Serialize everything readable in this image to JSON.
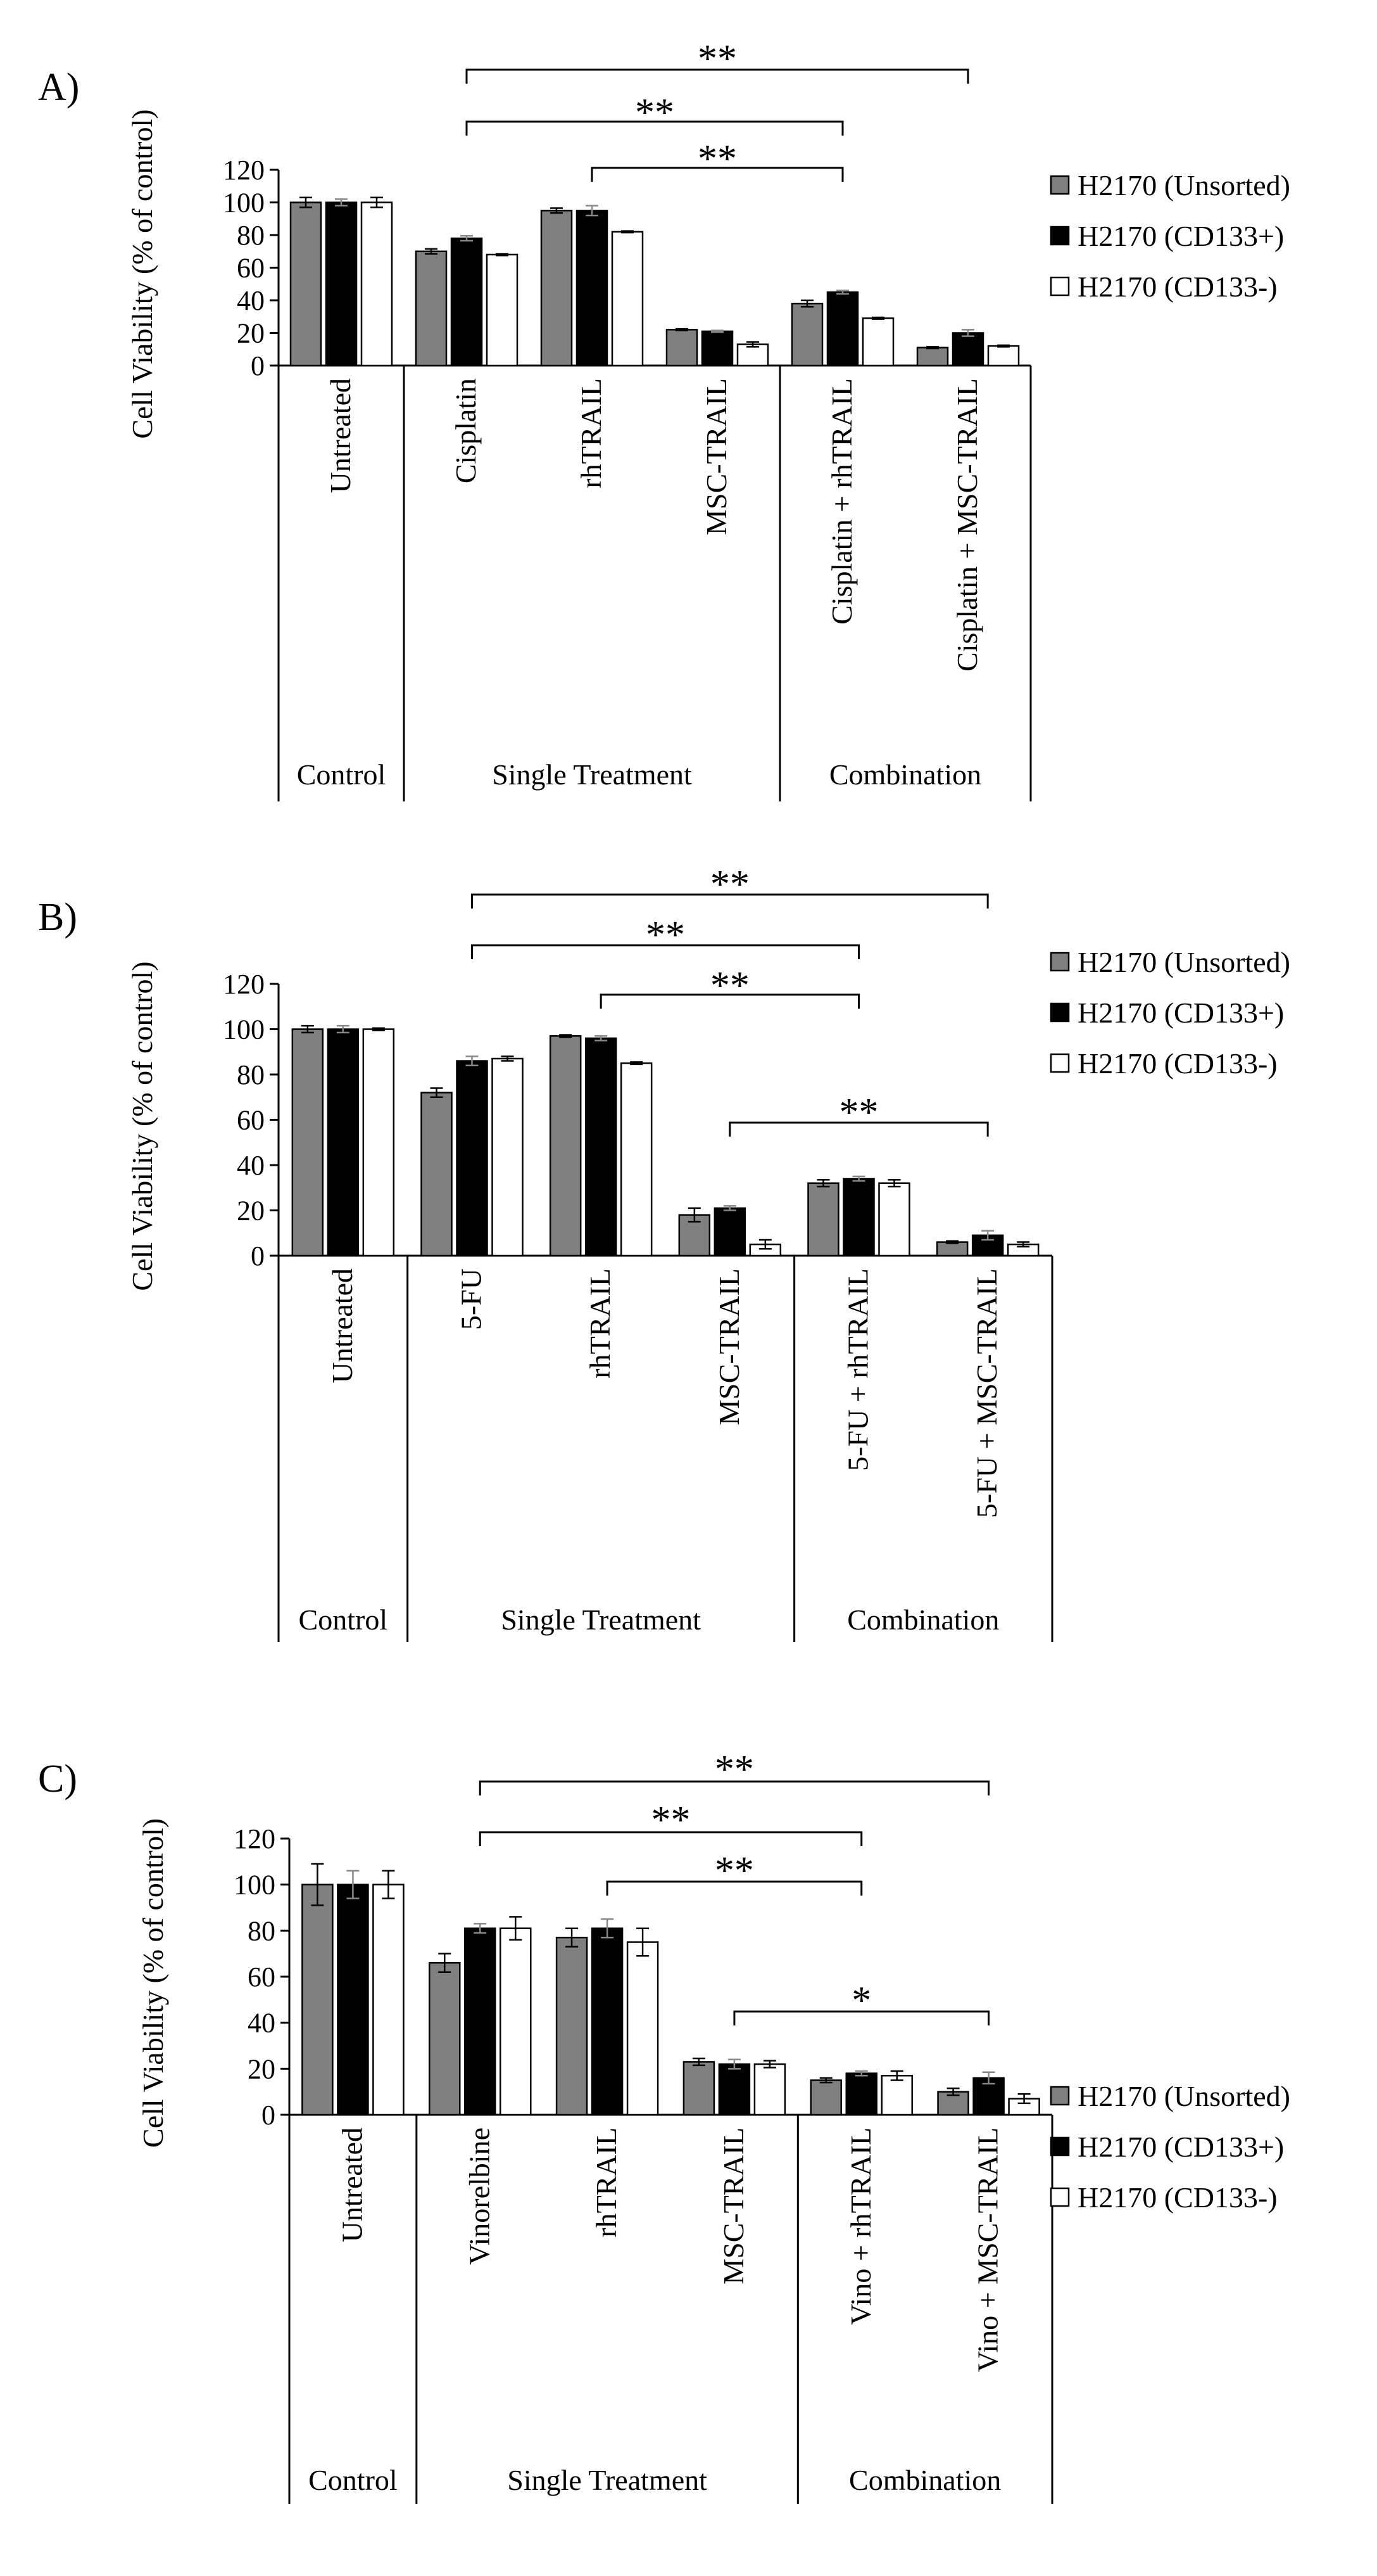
{
  "chart_data": [
    {
      "type": "bar",
      "panel_label": "A)",
      "ylabel": "Cell Viability (% of control)",
      "ylim": [
        0,
        120
      ],
      "yticks": [
        "0",
        "20",
        "40",
        "60",
        "80",
        "100",
        "120"
      ],
      "grid": false,
      "categories": [
        "Untreated",
        "Cisplatin",
        "rhTRAIL",
        "MSC-TRAIL",
        "Cisplatin + rhTRAIL",
        "Cisplatin + MSC-TRAIL"
      ],
      "groups": [
        {
          "label": "Control",
          "span": [
            0,
            0
          ]
        },
        {
          "label": "Single Treatment",
          "span": [
            1,
            3
          ]
        },
        {
          "label": "Combination",
          "span": [
            4,
            5
          ]
        }
      ],
      "series": [
        {
          "name": "H2170 (Unsorted)",
          "color": "#808080",
          "values": [
            100,
            70,
            95,
            22,
            38,
            11
          ],
          "errors": [
            3,
            1.5,
            1.5,
            0.5,
            2,
            0.5
          ]
        },
        {
          "name": "H2170 (CD133+)",
          "color": "#000000",
          "values": [
            100,
            78,
            95,
            21,
            45,
            20
          ],
          "errors": [
            2,
            1.5,
            3,
            0.5,
            1,
            2
          ]
        },
        {
          "name": "H2170 (CD133-)",
          "color": "#ffffff",
          "values": [
            100,
            68,
            82,
            13,
            29,
            12
          ],
          "errors": [
            3,
            0.5,
            0.5,
            1.5,
            0.5,
            0.5
          ]
        }
      ],
      "significance": [
        {
          "from": 1,
          "to": 5,
          "label": "**"
        },
        {
          "from": 1,
          "to": 4,
          "label": "**"
        },
        {
          "from": 2,
          "to": 4,
          "label": "**"
        }
      ],
      "legend_position": "right"
    },
    {
      "type": "bar",
      "panel_label": "B)",
      "ylabel": "Cell Viability (% of control)",
      "ylim": [
        0,
        120
      ],
      "yticks": [
        "0",
        "20",
        "40",
        "60",
        "80",
        "100",
        "120"
      ],
      "grid": false,
      "categories": [
        "Untreated",
        "5-FU",
        "rhTRAIL",
        "MSC-TRAIL",
        "5-FU + rhTRAIL",
        "5-FU + MSC-TRAIL"
      ],
      "groups": [
        {
          "label": "Control",
          "span": [
            0,
            0
          ]
        },
        {
          "label": "Single Treatment",
          "span": [
            1,
            3
          ]
        },
        {
          "label": "Combination",
          "span": [
            4,
            5
          ]
        }
      ],
      "series": [
        {
          "name": "H2170 (Unsorted)",
          "color": "#808080",
          "values": [
            100,
            72,
            97,
            18,
            32,
            6
          ],
          "errors": [
            1.5,
            2,
            0.5,
            3,
            1.5,
            0.5
          ]
        },
        {
          "name": "H2170 (CD133+)",
          "color": "#000000",
          "values": [
            100,
            86,
            96,
            21,
            34,
            9
          ],
          "errors": [
            1.5,
            2,
            1,
            1,
            1,
            2
          ]
        },
        {
          "name": "H2170 (CD133-)",
          "color": "#ffffff",
          "values": [
            100,
            87,
            85,
            5,
            32,
            5
          ],
          "errors": [
            0.5,
            1,
            0.5,
            2,
            1.5,
            1
          ]
        }
      ],
      "significance": [
        {
          "from": 1,
          "to": 5,
          "label": "**"
        },
        {
          "from": 1,
          "to": 4,
          "label": "**"
        },
        {
          "from": 2,
          "to": 4,
          "label": "**"
        },
        {
          "from": 3,
          "to": 5,
          "label": "**"
        }
      ],
      "legend_position": "right"
    },
    {
      "type": "bar",
      "panel_label": "C)",
      "ylabel": "Cell Viability (% of control)",
      "ylim": [
        0,
        120
      ],
      "yticks": [
        "0",
        "20",
        "40",
        "60",
        "80",
        "100",
        "120"
      ],
      "grid": false,
      "categories": [
        "Untreated",
        "Vinorelbine",
        "rhTRAIL",
        "MSC-TRAIL",
        "Vino + rhTRAIL",
        "Vino + MSC-TRAIL"
      ],
      "groups": [
        {
          "label": "Control",
          "span": [
            0,
            0
          ]
        },
        {
          "label": "Single Treatment",
          "span": [
            1,
            3
          ]
        },
        {
          "label": "Combination",
          "span": [
            4,
            5
          ]
        }
      ],
      "series": [
        {
          "name": "H2170 (Unsorted)",
          "color": "#808080",
          "values": [
            100,
            66,
            77,
            23,
            15,
            10
          ],
          "errors": [
            9,
            4,
            4,
            1.5,
            1,
            1.5
          ]
        },
        {
          "name": "H2170 (CD133+)",
          "color": "#000000",
          "values": [
            100,
            81,
            81,
            22,
            18,
            16
          ],
          "errors": [
            6,
            2,
            4,
            2,
            1,
            2.5
          ]
        },
        {
          "name": "H2170 (CD133-)",
          "color": "#ffffff",
          "values": [
            100,
            81,
            75,
            22,
            17,
            7
          ],
          "errors": [
            6,
            5,
            6,
            1.5,
            2,
            2
          ]
        }
      ],
      "significance": [
        {
          "from": 1,
          "to": 5,
          "label": "**"
        },
        {
          "from": 1,
          "to": 4,
          "label": "**"
        },
        {
          "from": 2,
          "to": 4,
          "label": "**"
        },
        {
          "from": 3,
          "to": 5,
          "label": "*"
        }
      ],
      "legend_position": "right"
    }
  ]
}
